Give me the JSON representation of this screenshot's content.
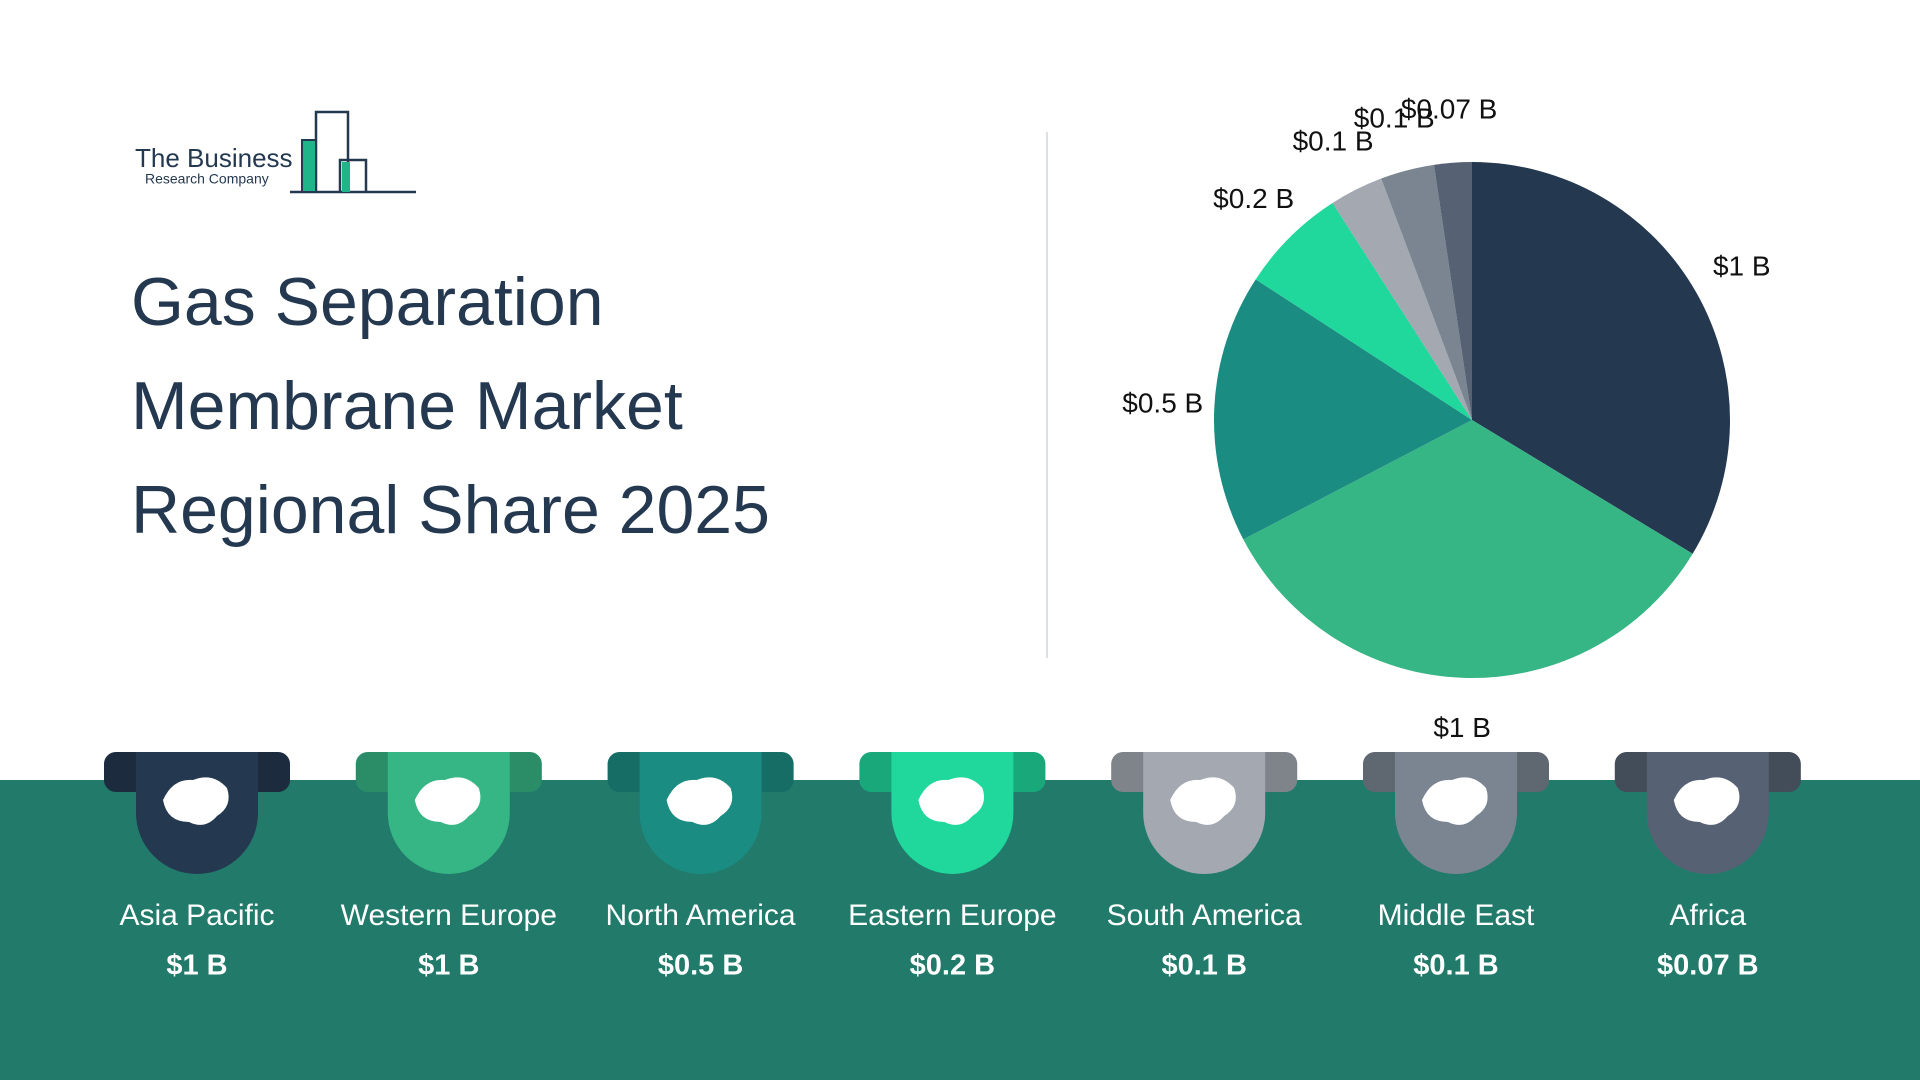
{
  "logo": {
    "line1": "The Business",
    "line2": "Research Company"
  },
  "chart_data": {
    "type": "pie",
    "title": "Gas Separation Membrane Market Regional Share 2025",
    "categories": [
      "Asia Pacific",
      "Western Europe",
      "North America",
      "Eastern Europe",
      "South America",
      "Middle East",
      "Africa"
    ],
    "values": [
      1,
      1,
      0.5,
      0.2,
      0.1,
      0.1,
      0.07
    ],
    "value_labels": [
      "$1 B",
      "$1 B",
      "$0.5 B",
      "$0.2 B",
      "$0.1 B",
      "$0.1 B",
      "$0.07 B"
    ],
    "colors": [
      "#243850",
      "#36b585",
      "#1b8c82",
      "#20d89c",
      "#a3a8b1",
      "#7a8591",
      "#566273"
    ]
  }
}
